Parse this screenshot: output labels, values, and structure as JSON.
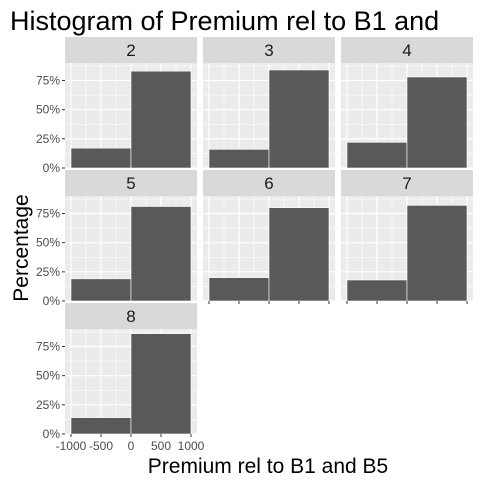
{
  "chart_data": {
    "type": "bar",
    "title": "Histogram of Premium rel to B1 and",
    "xlabel": "Premium rel to B1 and B5",
    "ylabel": "Percentage",
    "xlim": [
      -1100,
      1100
    ],
    "ylim": [
      0,
      0.9
    ],
    "x_ticks": [
      {
        "value": -1000,
        "label": "-1000"
      },
      {
        "value": -500,
        "label": "-500"
      },
      {
        "value": 0,
        "label": "0"
      },
      {
        "value": 500,
        "label": "500"
      },
      {
        "value": 1000,
        "label": "1000"
      }
    ],
    "y_ticks": [
      {
        "value": 0,
        "label": "0%"
      },
      {
        "value": 0.25,
        "label": "25%"
      },
      {
        "value": 0.5,
        "label": "50%"
      },
      {
        "value": 0.75,
        "label": "75%"
      }
    ],
    "bins": [
      [
        -1000,
        0
      ],
      [
        0,
        1000
      ]
    ],
    "bar_color": "#595959",
    "panel_background": "#ebebeb",
    "strip_background": "#d9d9d9",
    "grid": true,
    "panels": [
      {
        "label": "2",
        "values": [
          0.17,
          0.83
        ]
      },
      {
        "label": "3",
        "values": [
          0.16,
          0.84
        ]
      },
      {
        "label": "4",
        "values": [
          0.22,
          0.78
        ]
      },
      {
        "label": "5",
        "values": [
          0.19,
          0.81
        ]
      },
      {
        "label": "6",
        "values": [
          0.2,
          0.8
        ]
      },
      {
        "label": "7",
        "values": [
          0.18,
          0.82
        ]
      },
      {
        "label": "8",
        "values": [
          0.14,
          0.86
        ]
      }
    ]
  }
}
